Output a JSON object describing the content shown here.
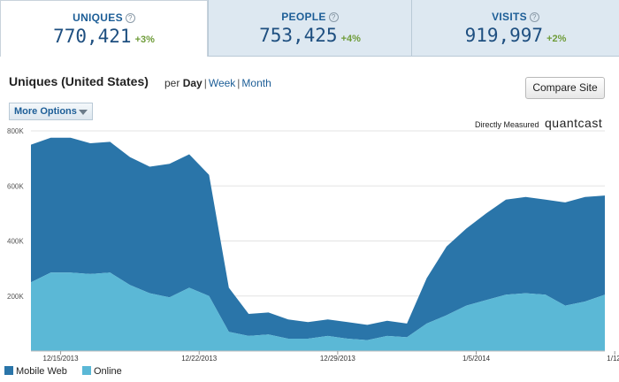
{
  "tabs": [
    {
      "label": "UNIQUES",
      "value": "770,421",
      "change": "+3%",
      "active": true
    },
    {
      "label": "PEOPLE",
      "value": "753,425",
      "change": "+4%",
      "active": false
    },
    {
      "label": "VISITS",
      "value": "919,997",
      "change": "+2%",
      "active": false
    }
  ],
  "help_glyph": "?",
  "header": {
    "title": "Uniques (United States)",
    "per_label": "per",
    "periods": {
      "day": "Day",
      "week": "Week",
      "month": "Month"
    },
    "separator": "|",
    "compare_button": "Compare Site",
    "more_options": "More Options",
    "measured_label": "Directly Measured",
    "logo_text": "quantcast"
  },
  "colors": {
    "mobile_web": "#2a75a9",
    "online": "#5bb8d6",
    "grid": "#e3e3e3",
    "axis_text": "#555555",
    "positive_change": "#6f9c3a"
  },
  "chart_data": {
    "type": "area",
    "stacked": true,
    "ylim": [
      0,
      800000
    ],
    "y_ticks": [
      0,
      200000,
      400000,
      600000,
      800000
    ],
    "y_tick_labels": [
      "",
      "200K",
      "400K",
      "600K",
      "800K"
    ],
    "x_tick_labels": [
      "12/15/2013",
      "12/22/2013",
      "12/29/2013",
      "1/5/2014",
      "1/12/"
    ],
    "x_tick_index": [
      1.5,
      8.5,
      15.5,
      22.5,
      29.5
    ],
    "grid": true,
    "legend_position": "bottom-left",
    "x": [
      "12/14",
      "12/15",
      "12/16",
      "12/17",
      "12/18",
      "12/19",
      "12/20",
      "12/21",
      "12/22",
      "12/23",
      "12/24",
      "12/25",
      "12/26",
      "12/27",
      "12/28",
      "12/29",
      "12/30",
      "12/31",
      "1/1",
      "1/2",
      "1/3",
      "1/4",
      "1/5",
      "1/6",
      "1/7",
      "1/8",
      "1/9",
      "1/10",
      "1/11",
      "1/12"
    ],
    "series": [
      {
        "name": "Online",
        "color": "#5bb8d6",
        "values": [
          250000,
          285000,
          285000,
          280000,
          285000,
          240000,
          210000,
          195000,
          230000,
          200000,
          70000,
          55000,
          60000,
          45000,
          45000,
          55000,
          45000,
          40000,
          55000,
          50000,
          100000,
          130000,
          165000,
          185000,
          205000,
          210000,
          205000,
          165000,
          180000,
          205000
        ]
      },
      {
        "name": "Mobile Web",
        "color": "#2a75a9",
        "values": [
          500000,
          490000,
          490000,
          475000,
          475000,
          465000,
          460000,
          485000,
          485000,
          440000,
          160000,
          80000,
          80000,
          70000,
          60000,
          60000,
          60000,
          55000,
          55000,
          50000,
          165000,
          250000,
          280000,
          315000,
          345000,
          350000,
          345000,
          375000,
          380000,
          360000
        ]
      }
    ]
  }
}
